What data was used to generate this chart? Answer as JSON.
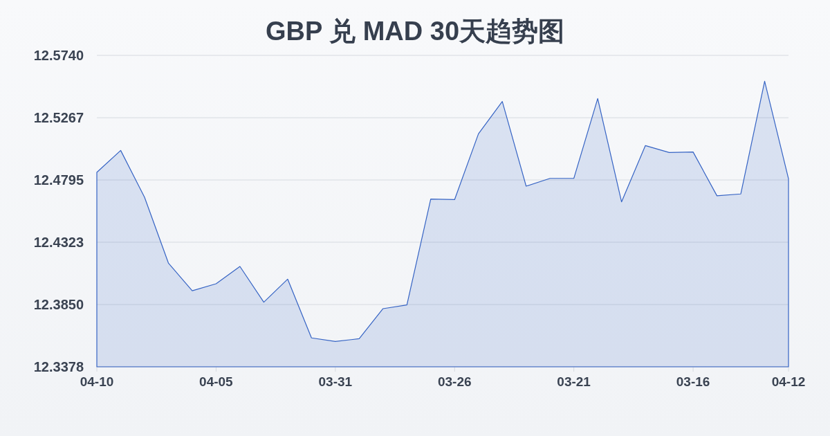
{
  "chart_data": {
    "type": "area",
    "title": "GBP 兑 MAD 30天趋势图",
    "categories": [
      "04-10",
      null,
      null,
      null,
      null,
      "04-05",
      null,
      null,
      null,
      null,
      "03-31",
      null,
      null,
      null,
      null,
      "03-26",
      null,
      null,
      null,
      null,
      "03-21",
      null,
      null,
      null,
      null,
      "03-16",
      null,
      null,
      null,
      "04-12"
    ],
    "values": [
      12.4853,
      12.5019,
      12.4664,
      12.4165,
      12.3955,
      12.4008,
      12.4139,
      12.3868,
      12.4043,
      12.3597,
      12.357,
      12.3591,
      12.3819,
      12.3847,
      12.465,
      12.4646,
      12.5145,
      12.539,
      12.4748,
      12.4807,
      12.4807,
      12.5413,
      12.4629,
      12.5056,
      12.5003,
      12.5007,
      12.4675,
      12.4689,
      12.5544,
      12.4804
    ],
    "color": "#3563c4",
    "ylim": [
      12.3378,
      12.574
    ],
    "yticks": [
      {
        "value": 12.3378,
        "label": "12.3378"
      },
      {
        "value": 12.385,
        "label": "12.3850"
      },
      12.4323,
      12.4795,
      12.5267,
      {
        "value": 12.574,
        "label": "12.5740"
      }
    ],
    "grid": "y"
  }
}
